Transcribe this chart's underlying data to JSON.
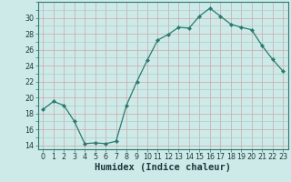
{
  "x": [
    0,
    1,
    2,
    3,
    4,
    5,
    6,
    7,
    8,
    9,
    10,
    11,
    12,
    13,
    14,
    15,
    16,
    17,
    18,
    19,
    20,
    21,
    22,
    23
  ],
  "y": [
    18.5,
    19.5,
    19.0,
    17.0,
    14.2,
    14.3,
    14.2,
    14.5,
    19.0,
    22.0,
    24.7,
    27.2,
    27.9,
    28.8,
    28.7,
    30.2,
    31.2,
    30.2,
    29.2,
    28.8,
    28.5,
    26.5,
    24.8,
    23.3
  ],
  "line_color": "#2a7a6f",
  "marker": "D",
  "marker_size": 2.2,
  "bg_color": "#ceeae8",
  "grid_color_minor": "#aacfcc",
  "grid_color_major": "#c8a8aa",
  "xlabel": "Humidex (Indice chaleur)",
  "ylim": [
    13.5,
    32
  ],
  "xlim": [
    -0.5,
    23.5
  ],
  "yticks": [
    14,
    16,
    18,
    20,
    22,
    24,
    26,
    28,
    30
  ],
  "xticks": [
    0,
    1,
    2,
    3,
    4,
    5,
    6,
    7,
    8,
    9,
    10,
    11,
    12,
    13,
    14,
    15,
    16,
    17,
    18,
    19,
    20,
    21,
    22,
    23
  ],
  "tick_fontsize": 5.8,
  "xlabel_fontsize": 7.5,
  "spine_color": "#2a7a6f"
}
